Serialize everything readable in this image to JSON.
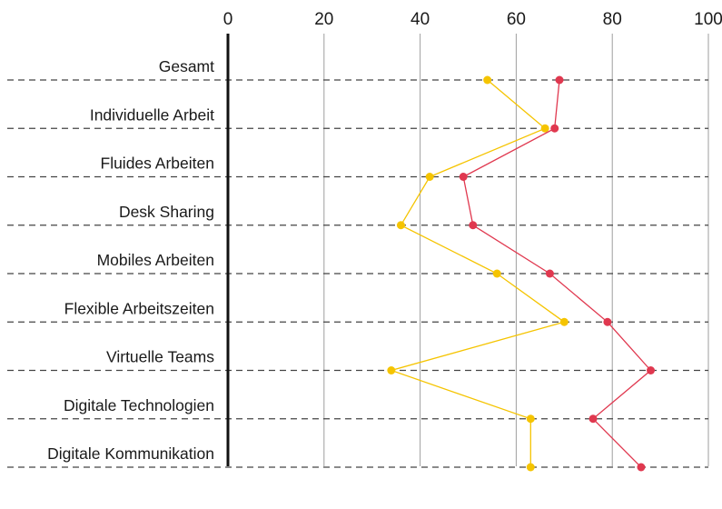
{
  "chart_data": {
    "type": "line",
    "title": "",
    "xlabel": "",
    "ylabel": "",
    "xlim": [
      0,
      100
    ],
    "xticks": [
      0,
      20,
      40,
      60,
      80,
      100
    ],
    "grid": true,
    "categories": [
      "Gesamt",
      "Individuelle Arbeit",
      "Fluides Arbeiten",
      "Desk Sharing",
      "Mobiles Arbeiten",
      "Flexible Arbeitszeiten",
      "Virtuelle Teams",
      "Digitale Technologien",
      "Digitale Kommunikation"
    ],
    "series": [
      {
        "color": "#f5c400",
        "values": [
          54,
          66,
          42,
          36,
          56,
          70,
          34,
          63,
          63
        ]
      },
      {
        "color": "#e0384f",
        "values": [
          69,
          68,
          49,
          51,
          67,
          79,
          88,
          76,
          86
        ]
      }
    ]
  }
}
